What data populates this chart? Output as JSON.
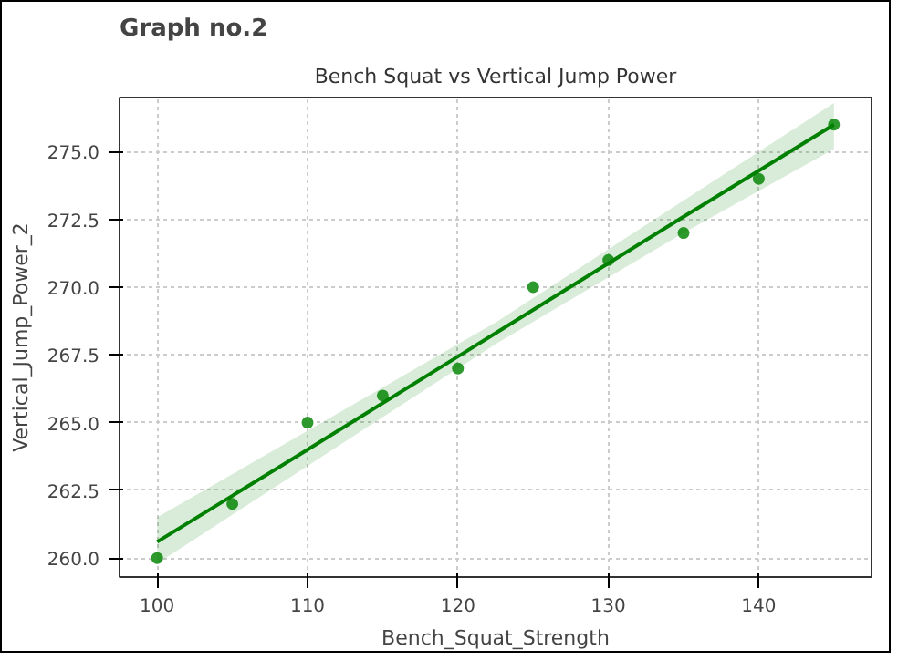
{
  "chart_data": {
    "type": "scatter",
    "title": "Graph no.2",
    "subtitle": "Bench Squat vs Vertical Jump Power",
    "xlabel": "Bench_Squat_Strength",
    "ylabel": "Vertical_Jump_Power_2",
    "x": [
      100,
      105,
      110,
      115,
      120,
      125,
      130,
      135,
      140,
      145
    ],
    "series": [
      {
        "color": "#2e9a2e",
        "marker": "circle",
        "values": [
          260,
          262,
          265,
          266,
          267,
          270,
          271,
          272,
          274,
          276
        ]
      },
      {
        "type": "line",
        "marker": "none",
        "color": "#008000",
        "x": [
          100,
          110,
          122.5,
          135,
          145
        ],
        "values": [
          260.6,
          264.0,
          268.3,
          272.6,
          276.0
        ],
        "lower": [
          259.8,
          263.4,
          267.9,
          272.0,
          275.1
        ],
        "upper": [
          261.5,
          264.7,
          268.7,
          273.2,
          276.8
        ]
      }
    ],
    "line_style": "solid",
    "grid": true,
    "xlim": [
      97.5,
      147.5
    ],
    "xticks": [
      100,
      110,
      120,
      130,
      140
    ],
    "ylim": [
      259.3,
      277.0
    ],
    "yticks": [
      {
        "value": 260,
        "label": "260.0"
      },
      {
        "value": 262.5,
        "label": "262.5"
      },
      {
        "value": 265,
        "label": "265.0"
      },
      {
        "value": 267.5,
        "label": "267.5"
      },
      {
        "value": 270,
        "label": "270.0"
      },
      {
        "value": 272.5,
        "label": "272.5"
      },
      {
        "value": 275,
        "label": "275.0"
      }
    ]
  }
}
